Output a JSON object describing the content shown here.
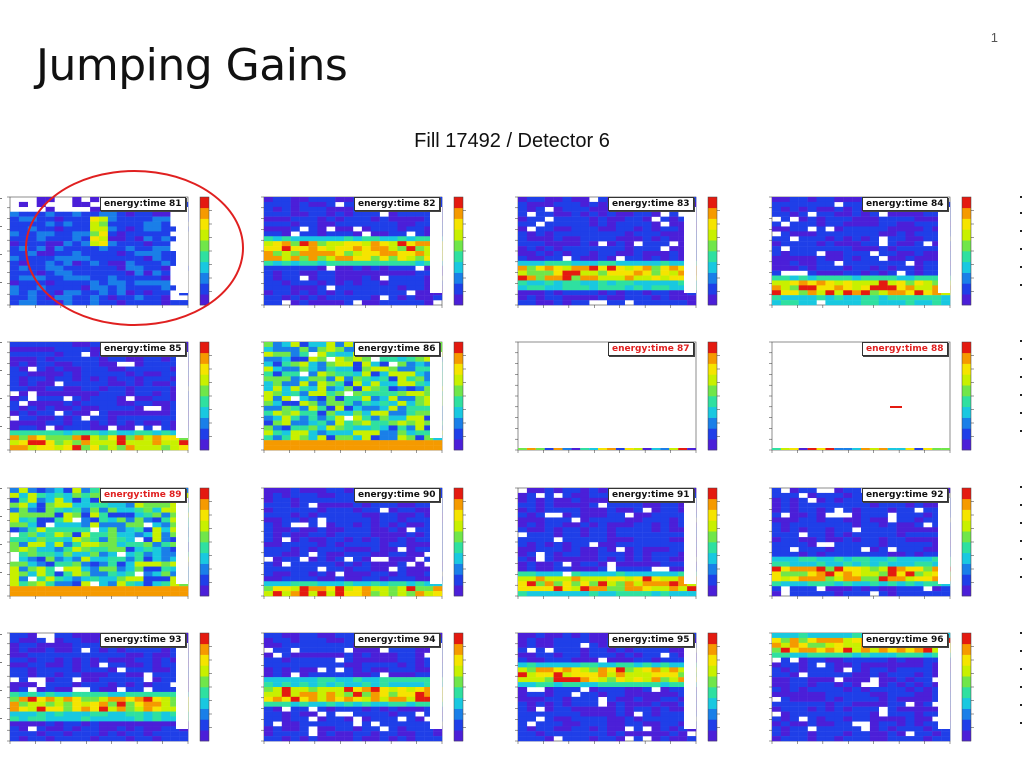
{
  "slide": {
    "title": "Jumping Gains",
    "subtitle": "Fill 17492 / Detector 6",
    "page_number": "1"
  },
  "colors": {
    "palette": [
      "#4b1fd8",
      "#1f3fe8",
      "#1a7fe8",
      "#19c8e0",
      "#2fe0a0",
      "#70e64a",
      "#c8f000",
      "#f5e400",
      "#f59a00",
      "#e41a10"
    ],
    "flagged_title": "#e02020",
    "highlight_circle": "#e02020"
  },
  "chart_data": [
    {
      "type": "heatmap",
      "title": "energy:time 81",
      "status": "circled",
      "pattern": "jump",
      "band_level": 0.3
    },
    {
      "type": "heatmap",
      "title": "energy:time 82",
      "status": "normal",
      "pattern": "band",
      "band_level": 0.5
    },
    {
      "type": "heatmap",
      "title": "energy:time 83",
      "status": "normal",
      "pattern": "band",
      "band_level": 0.28
    },
    {
      "type": "heatmap",
      "title": "energy:time 84",
      "status": "normal",
      "pattern": "band",
      "band_level": 0.14
    },
    {
      "type": "heatmap",
      "title": "energy:time 85",
      "status": "normal",
      "pattern": "band",
      "band_level": 0.06
    },
    {
      "type": "heatmap",
      "title": "energy:time 86",
      "status": "normal",
      "pattern": "noisy",
      "band_level": 0.02
    },
    {
      "type": "heatmap",
      "title": "energy:time 87",
      "status": "flagged",
      "pattern": "empty",
      "band_level": 0.0
    },
    {
      "type": "heatmap",
      "title": "energy:time 88",
      "status": "flagged",
      "pattern": "empty-mark",
      "band_level": 0.0
    },
    {
      "type": "heatmap",
      "title": "energy:time 89",
      "status": "flagged",
      "pattern": "noisy",
      "band_level": 0.5
    },
    {
      "type": "heatmap",
      "title": "energy:time 90",
      "status": "normal",
      "pattern": "band",
      "band_level": 0.02
    },
    {
      "type": "heatmap",
      "title": "energy:time 91",
      "status": "normal",
      "pattern": "band",
      "band_level": 0.1
    },
    {
      "type": "heatmap",
      "title": "energy:time 92",
      "status": "normal",
      "pattern": "band",
      "band_level": 0.22
    },
    {
      "type": "heatmap",
      "title": "energy:time 93",
      "status": "normal",
      "pattern": "band",
      "band_level": 0.32
    },
    {
      "type": "heatmap",
      "title": "energy:time 94",
      "status": "normal",
      "pattern": "band",
      "band_level": 0.45
    },
    {
      "type": "heatmap",
      "title": "energy:time 95",
      "status": "normal",
      "pattern": "band",
      "band_level": 0.62
    },
    {
      "type": "heatmap",
      "title": "energy:time 96",
      "status": "normal",
      "pattern": "band",
      "band_level": 0.88
    }
  ]
}
